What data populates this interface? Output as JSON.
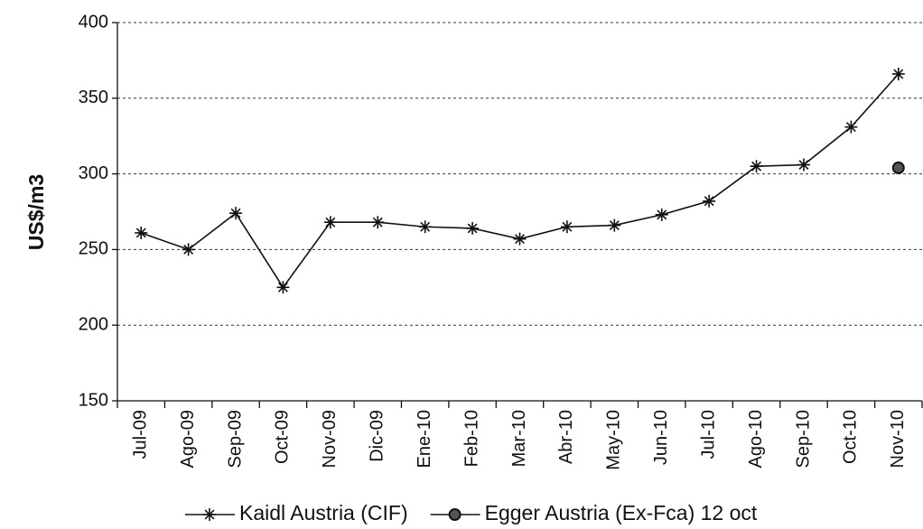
{
  "chart_data": {
    "type": "line",
    "y_label": "US$/m3",
    "categories": [
      "Jul-09",
      "Ago-09",
      "Sep-09",
      "Oct-09",
      "Nov-09",
      "Dic-09",
      "Ene-10",
      "Feb-10",
      "Mar-10",
      "Abr-10",
      "May-10",
      "Jun-10",
      "Jul-10",
      "Ago-10",
      "Sep-10",
      "Oct-10",
      "Nov-10"
    ],
    "series": [
      {
        "name": "Kaidl Austria (CIF)",
        "color": "#111111",
        "marker": "asterisk",
        "values": [
          261,
          250,
          274,
          225,
          268,
          268,
          265,
          264,
          257,
          265,
          266,
          273,
          282,
          305,
          306,
          331,
          366
        ]
      },
      {
        "name": "Egger Austria (Ex-Fca) 12 oct",
        "color": "#111111",
        "marker": "circle",
        "values": [
          null,
          null,
          null,
          null,
          null,
          null,
          null,
          null,
          null,
          null,
          null,
          null,
          null,
          null,
          null,
          null,
          304
        ]
      }
    ],
    "ylim": [
      150,
      400
    ],
    "yticks": [
      150,
      200,
      250,
      300,
      350,
      400
    ],
    "grid": true,
    "legend": "bottom"
  }
}
